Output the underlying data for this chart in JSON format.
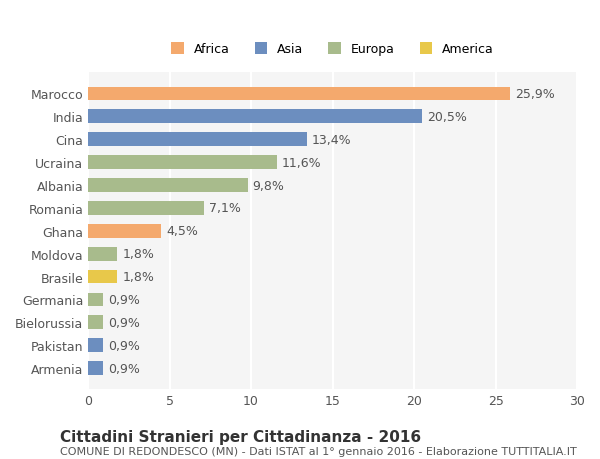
{
  "categories": [
    "Marocco",
    "India",
    "Cina",
    "Ucraina",
    "Albania",
    "Romania",
    "Ghana",
    "Moldova",
    "Brasile",
    "Germania",
    "Bielorussia",
    "Pakistan",
    "Armenia"
  ],
  "values": [
    25.9,
    20.5,
    13.4,
    11.6,
    9.8,
    7.1,
    4.5,
    1.8,
    1.8,
    0.9,
    0.9,
    0.9,
    0.9
  ],
  "labels": [
    "25,9%",
    "20,5%",
    "13,4%",
    "11,6%",
    "9,8%",
    "7,1%",
    "4,5%",
    "1,8%",
    "1,8%",
    "0,9%",
    "0,9%",
    "0,9%",
    "0,9%"
  ],
  "bar_colors": [
    "#F4A96D",
    "#6C8EBF",
    "#6C8EBF",
    "#A8BB8C",
    "#A8BB8C",
    "#A8BB8C",
    "#F4A96D",
    "#A8BB8C",
    "#E8C84A",
    "#A8BB8C",
    "#A8BB8C",
    "#6C8EBF",
    "#6C8EBF"
  ],
  "legend_labels": [
    "Africa",
    "Asia",
    "Europa",
    "America"
  ],
  "legend_colors": [
    "#F4A96D",
    "#6C8EBF",
    "#A8BB8C",
    "#E8C84A"
  ],
  "xlim": [
    0,
    30
  ],
  "xticks": [
    0,
    5,
    10,
    15,
    20,
    25,
    30
  ],
  "title": "Cittadini Stranieri per Cittadinanza - 2016",
  "subtitle": "COMUNE DI REDONDESCO (MN) - Dati ISTAT al 1° gennaio 2016 - Elaborazione TUTTITALIA.IT",
  "background_color": "#ffffff",
  "plot_bg_color": "#f5f5f5",
  "grid_color": "#ffffff",
  "bar_height": 0.6,
  "label_fontsize": 9,
  "tick_fontsize": 9,
  "title_fontsize": 11,
  "subtitle_fontsize": 8
}
